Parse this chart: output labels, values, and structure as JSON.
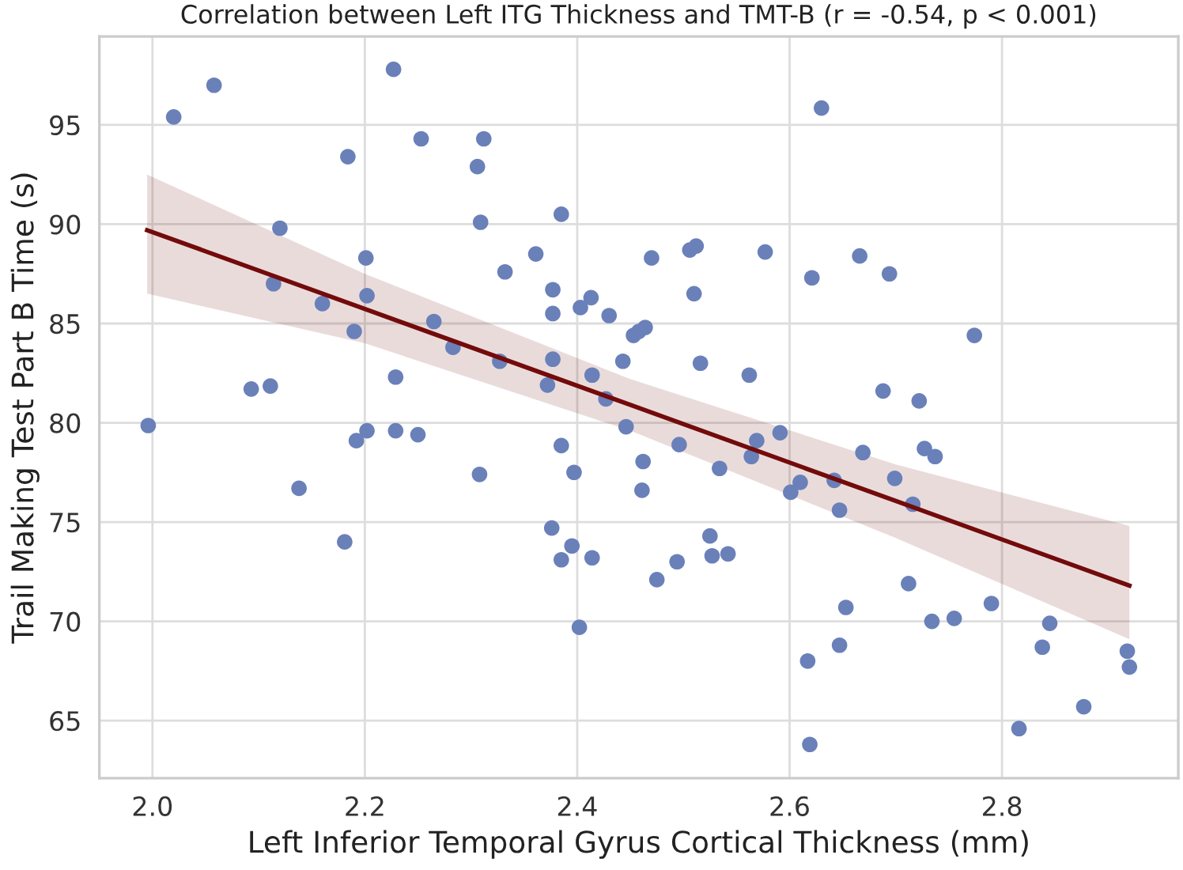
{
  "chart_data": {
    "type": "scatter",
    "title": "Correlation between Left ITG Thickness and TMT-B (r = -0.54, p < 0.001)",
    "xlabel": "Left Inferior Temporal Gyrus Cortical Thickness (mm)",
    "ylabel": "Trail Making Test Part B Time (s)",
    "xlim": [
      1.95,
      2.966
    ],
    "ylim": [
      62.1,
      99.45
    ],
    "xticks": [
      {
        "value": 2.0,
        "label": "2.0"
      },
      {
        "value": 2.2,
        "label": "2.2"
      },
      {
        "value": 2.4,
        "label": "2.4"
      },
      {
        "value": 2.6,
        "label": "2.6"
      },
      {
        "value": 2.8,
        "label": "2.8"
      }
    ],
    "yticks": [
      65,
      70,
      75,
      80,
      85,
      90,
      95
    ],
    "grid": true,
    "series": [
      {
        "color": "#6a80b9",
        "marker": "circle",
        "x": [
          2.02,
          2.058,
          2.227,
          2.253,
          2.312,
          2.184,
          2.306,
          2.309,
          2.385,
          2.12,
          2.201,
          2.332,
          2.361,
          2.114,
          2.377,
          2.202,
          2.16,
          2.403,
          2.413,
          2.377,
          2.43,
          2.265,
          2.19,
          2.283,
          2.327,
          2.377,
          2.443,
          2.414,
          2.229,
          2.372,
          2.093,
          2.111,
          2.427,
          2.63,
          2.47,
          2.506,
          2.512,
          2.577,
          2.51,
          2.621,
          2.666,
          2.694,
          2.453,
          2.458,
          2.464,
          2.516,
          2.562,
          2.774,
          2.688,
          2.722,
          1.996,
          2.192,
          2.202,
          2.229,
          2.25,
          2.138,
          2.308,
          2.385,
          2.397,
          2.181,
          2.376,
          2.395,
          2.385,
          2.414,
          2.402,
          2.446,
          2.462,
          2.461,
          2.496,
          2.534,
          2.569,
          2.564,
          2.591,
          2.601,
          2.61,
          2.642,
          2.647,
          2.669,
          2.727,
          2.737,
          2.699,
          2.716,
          2.525,
          2.527,
          2.542,
          2.494,
          2.475,
          2.712,
          2.653,
          2.734,
          2.755,
          2.79,
          2.845,
          2.838,
          2.647,
          2.617,
          2.918,
          2.92,
          2.877,
          2.816,
          2.619
        ],
        "values": [
          95.4,
          97.0,
          97.8,
          94.3,
          94.3,
          93.4,
          92.9,
          90.1,
          90.5,
          89.8,
          88.3,
          87.6,
          88.5,
          87.0,
          86.7,
          86.4,
          86.0,
          85.8,
          86.3,
          85.5,
          85.4,
          85.1,
          84.6,
          83.8,
          83.1,
          83.2,
          83.1,
          82.4,
          82.3,
          81.9,
          81.7,
          81.85,
          81.2,
          95.85,
          88.3,
          88.7,
          88.9,
          88.6,
          86.5,
          87.3,
          88.4,
          87.5,
          84.4,
          84.6,
          84.8,
          83.0,
          82.4,
          84.4,
          81.6,
          81.1,
          79.86,
          79.1,
          79.6,
          79.6,
          79.4,
          76.7,
          77.4,
          78.85,
          77.5,
          74.0,
          74.7,
          73.8,
          73.1,
          73.2,
          69.7,
          79.8,
          78.05,
          76.6,
          78.9,
          77.7,
          79.1,
          78.3,
          79.5,
          76.5,
          77.0,
          77.1,
          75.6,
          78.5,
          78.7,
          78.3,
          77.2,
          75.9,
          74.3,
          73.3,
          73.4,
          73.0,
          72.1,
          71.9,
          70.7,
          70.0,
          70.15,
          70.9,
          69.9,
          68.7,
          68.8,
          68.0,
          68.5,
          67.7,
          65.7,
          64.6,
          63.8
        ]
      },
      {
        "type": "line",
        "color": "#730b0b",
        "marker": "none",
        "line_style": "solid",
        "x": [
          1.995,
          2.2,
          2.45,
          2.7,
          2.92
        ],
        "values": [
          89.7,
          85.73,
          80.9,
          76.06,
          71.8
        ],
        "lower": [
          86.5,
          84.0,
          79.6,
          74.2,
          69.1
        ],
        "upper": [
          92.5,
          87.5,
          82.2,
          77.9,
          74.8
        ]
      }
    ]
  }
}
